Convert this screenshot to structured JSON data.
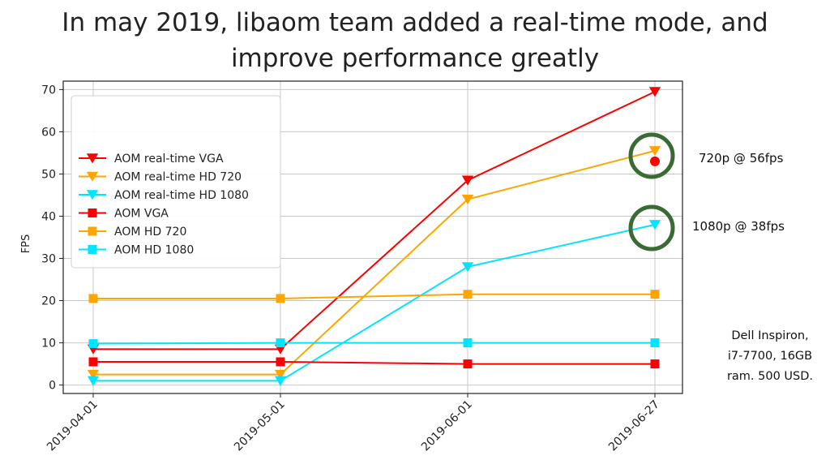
{
  "title": {
    "line1": "In may 2019, libaom team added a real-time mode, and",
    "line2": "improve performance greatly"
  },
  "annotations": {
    "a720": "720p @ 56fps",
    "a1080": "1080p @ 38fps",
    "specs": [
      "Dell Inspiron,",
      "i7-7700, 16GB",
      "ram. 500 USD."
    ],
    "circle_color": "#3a6b35"
  },
  "chart_data": {
    "type": "line",
    "categories": [
      "2019-04-01",
      "2019-05-01",
      "2019-06-01",
      "2019-06-27"
    ],
    "ylabel": "FPS",
    "xlabel": "",
    "ylim": [
      -2,
      72
    ],
    "yticks": [
      0,
      10,
      20,
      30,
      40,
      50,
      60,
      70
    ],
    "grid": true,
    "legend_position": "upper-left",
    "series": [
      {
        "name": "AOM real-time VGA",
        "color": "#ff0000",
        "marker": "triangle-down",
        "values": [
          8.5,
          8.5,
          48.5,
          69.5
        ]
      },
      {
        "name": "AOM real-time HD 720",
        "color": "#ffa500",
        "marker": "triangle-down",
        "values": [
          2.5,
          2.5,
          44,
          55.5
        ]
      },
      {
        "name": "AOM real-time HD 1080",
        "color": "#00e5ff",
        "marker": "triangle-down",
        "values": [
          1,
          1,
          28,
          38
        ]
      },
      {
        "name": "AOM VGA",
        "color": "#ff0000",
        "marker": "square",
        "values": [
          5.5,
          5.5,
          5,
          5
        ]
      },
      {
        "name": "AOM HD 720",
        "color": "#ffa500",
        "marker": "square",
        "values": [
          20.5,
          20.5,
          21.5,
          21.5
        ]
      },
      {
        "name": "AOM HD 1080",
        "color": "#00e5ff",
        "marker": "square",
        "values": [
          9.8,
          10,
          10,
          10
        ]
      }
    ],
    "extra_points": [
      {
        "series": "AOM VGA",
        "category": "2019-06-27",
        "value": 53
      }
    ]
  }
}
